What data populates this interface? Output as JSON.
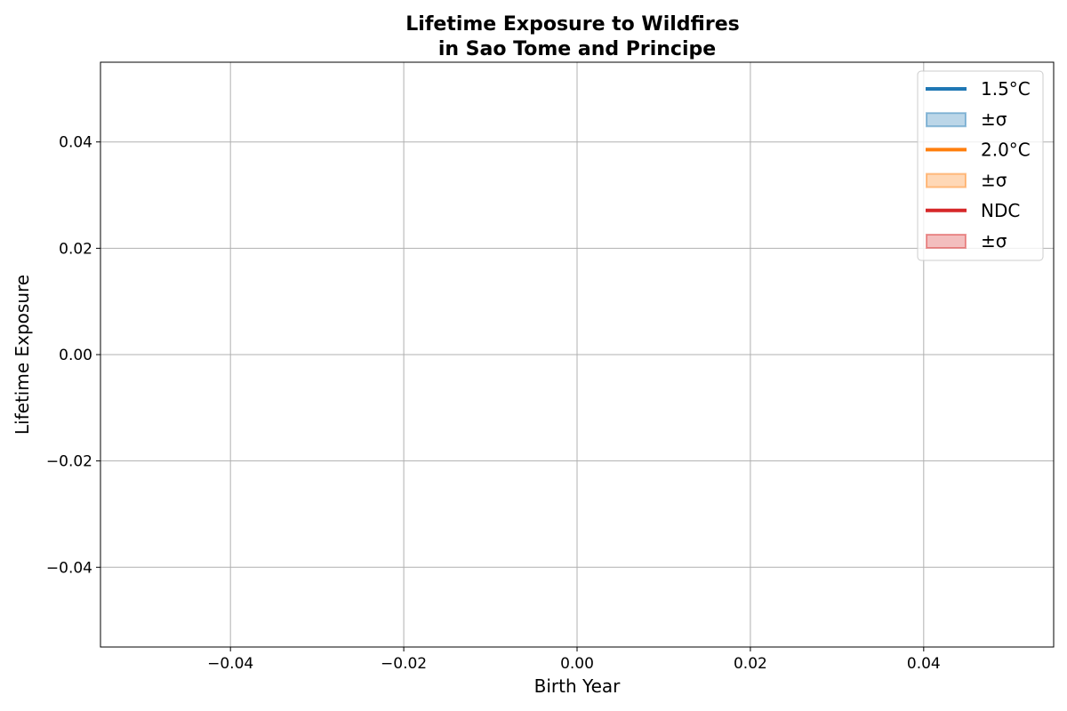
{
  "chart_data": {
    "type": "line",
    "title_lines": [
      "Lifetime Exposure to Wildfires",
      "in Sao Tome and Principe"
    ],
    "xlabel": "Birth Year",
    "ylabel": "Lifetime Exposure",
    "xlim": [
      -0.055,
      0.055
    ],
    "ylim": [
      -0.055,
      0.055
    ],
    "x_ticks": [
      -0.04,
      -0.02,
      0.0,
      0.02,
      0.04
    ],
    "x_tick_labels": [
      "−0.04",
      "−0.02",
      "0.00",
      "0.02",
      "0.04"
    ],
    "y_ticks": [
      -0.04,
      -0.02,
      0.0,
      0.02,
      0.04
    ],
    "y_tick_labels": [
      "−0.04",
      "−0.02",
      "0.00",
      "0.02",
      "0.04"
    ],
    "grid": true,
    "legend_position": "top-right",
    "legend": [
      {
        "label": "1.5°C",
        "kind": "line",
        "color": "#1f77b4"
      },
      {
        "label": "±σ",
        "kind": "band",
        "color": "#1f77b4"
      },
      {
        "label": "2.0°C",
        "kind": "line",
        "color": "#ff7f0e"
      },
      {
        "label": "±σ",
        "kind": "band",
        "color": "#ff7f0e"
      },
      {
        "label": "NDC",
        "kind": "line",
        "color": "#d62728"
      },
      {
        "label": "±σ",
        "kind": "band",
        "color": "#d62728"
      }
    ],
    "series": []
  }
}
